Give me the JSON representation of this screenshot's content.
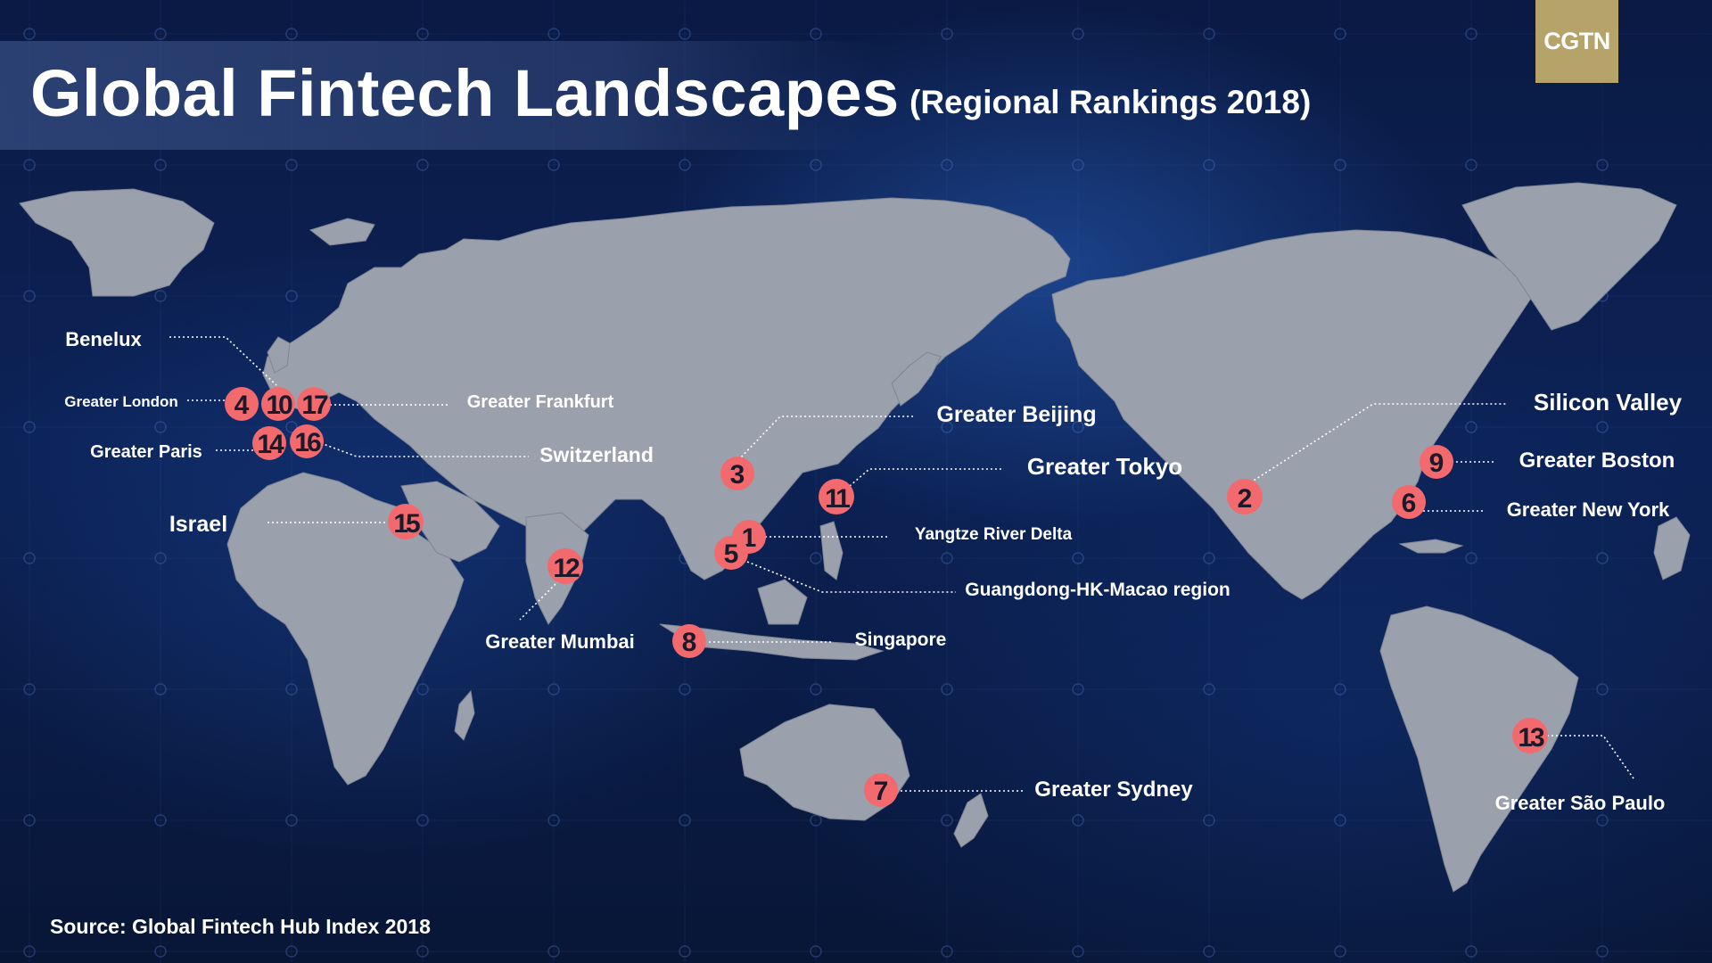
{
  "header": {
    "title": "Global Fintech Landscapes",
    "subtitle": "(Regional Rankings 2018)",
    "logo": "CGTN"
  },
  "footer": {
    "source": "Source: Global Fintech Hub Index 2018"
  },
  "colors": {
    "background": "#0b1a3d",
    "land": "#9aa0ac",
    "marker": "#f26a6e",
    "logo": "#b6a36a",
    "label_border": "#e9edf5"
  },
  "map": {
    "regions": [
      {
        "rank": "1",
        "name": "Yangtze River Delta"
      },
      {
        "rank": "2",
        "name": "Silicon Valley"
      },
      {
        "rank": "3",
        "name": "Greater Beijing"
      },
      {
        "rank": "4",
        "name": "Greater London"
      },
      {
        "rank": "5",
        "name": "Guangdong-HK-Macao region"
      },
      {
        "rank": "6",
        "name": "Greater New York"
      },
      {
        "rank": "7",
        "name": "Greater Sydney"
      },
      {
        "rank": "8",
        "name": "Singapore"
      },
      {
        "rank": "9",
        "name": "Greater Boston"
      },
      {
        "rank": "10",
        "name": "Benelux"
      },
      {
        "rank": "11",
        "name": "Greater Tokyo"
      },
      {
        "rank": "12",
        "name": "Greater Mumbai"
      },
      {
        "rank": "13",
        "name": "Greater São Paulo"
      },
      {
        "rank": "14",
        "name": "Greater Paris"
      },
      {
        "rank": "15",
        "name": "Israel"
      },
      {
        "rank": "16",
        "name": "Switzerland"
      },
      {
        "rank": "17",
        "name": "Greater Frankfurt"
      }
    ]
  }
}
